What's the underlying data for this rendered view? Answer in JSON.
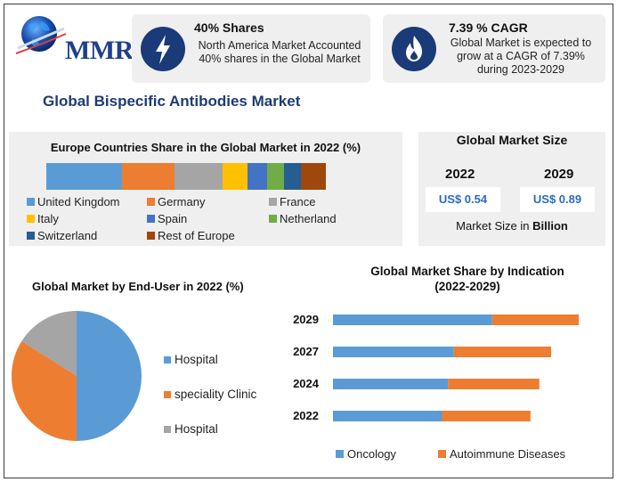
{
  "logo": {
    "text": "MMR"
  },
  "cards": [
    {
      "icon": "lightning-icon",
      "title": "40% Shares",
      "lines": [
        "North America Market Accounted",
        "40% shares in the Global Market"
      ]
    },
    {
      "icon": "flame-icon",
      "title": "7.39 % CAGR",
      "lines": [
        "Global Market is expected to",
        "grow at a CAGR of 7.39%",
        "during 2023-2029"
      ]
    }
  ],
  "main_title": "Global Bispecific Antibodies Market",
  "market_size": {
    "title": "Global Market Size",
    "years": [
      "2022",
      "2029"
    ],
    "values": [
      "US$ 0.54",
      "US$ 0.89"
    ],
    "note_prefix": "Market Size in ",
    "note_unit": "Billion"
  },
  "colors": {
    "blue": "#5b9bd5",
    "orange": "#ed7d31",
    "gray": "#a5a5a5",
    "yellow": "#ffc000",
    "royal": "#4472c4",
    "green": "#70ad47",
    "navy": "#255e91",
    "brown": "#9e480e",
    "dark_navy": "#1a3a78"
  },
  "chart_data": [
    {
      "type": "bar",
      "orientation": "stacked-horizontal",
      "title": "Europe Countries Share in the Global Market in 2022 (%)",
      "series": [
        {
          "name": "United Kingdom",
          "value": 27,
          "color": "#5b9bd5"
        },
        {
          "name": "Germany",
          "value": 19,
          "color": "#ed7d31"
        },
        {
          "name": "France",
          "value": 17,
          "color": "#a5a5a5"
        },
        {
          "name": "Italy",
          "value": 9,
          "color": "#ffc000"
        },
        {
          "name": "Spain",
          "value": 7,
          "color": "#4472c4"
        },
        {
          "name": "Netherland",
          "value": 6,
          "color": "#70ad47"
        },
        {
          "name": "Switzerland",
          "value": 6,
          "color": "#255e91"
        },
        {
          "name": "Rest of Europe",
          "value": 9,
          "color": "#9e480e"
        }
      ],
      "legend_position": "bottom"
    },
    {
      "type": "pie",
      "title": "Global Market by End-User in 2022 (%)",
      "slices": [
        {
          "name": "Hospital",
          "value": 50,
          "color": "#5b9bd5"
        },
        {
          "name": "speciality Clinic",
          "value": 34,
          "color": "#ed7d31"
        },
        {
          "name": "Hospital",
          "value": 16,
          "color": "#a5a5a5"
        }
      ],
      "legend_position": "right"
    },
    {
      "type": "bar",
      "orientation": "stacked-horizontal",
      "title_lines": [
        "Global Market Share by Indication",
        "(2022-2029)"
      ],
      "categories": [
        "2029",
        "2027",
        "2024",
        "2022"
      ],
      "series": [
        {
          "name": "Oncology",
          "values": [
            0.54,
            0.41,
            0.39,
            0.37
          ],
          "color": "#5b9bd5"
        },
        {
          "name": "Autoimmune Diseases",
          "values": [
            0.34,
            0.33,
            0.31,
            0.3
          ],
          "color": "#ed7d31"
        }
      ],
      "xlim": [
        0,
        0.9
      ],
      "grid": false,
      "legend_position": "bottom"
    }
  ]
}
